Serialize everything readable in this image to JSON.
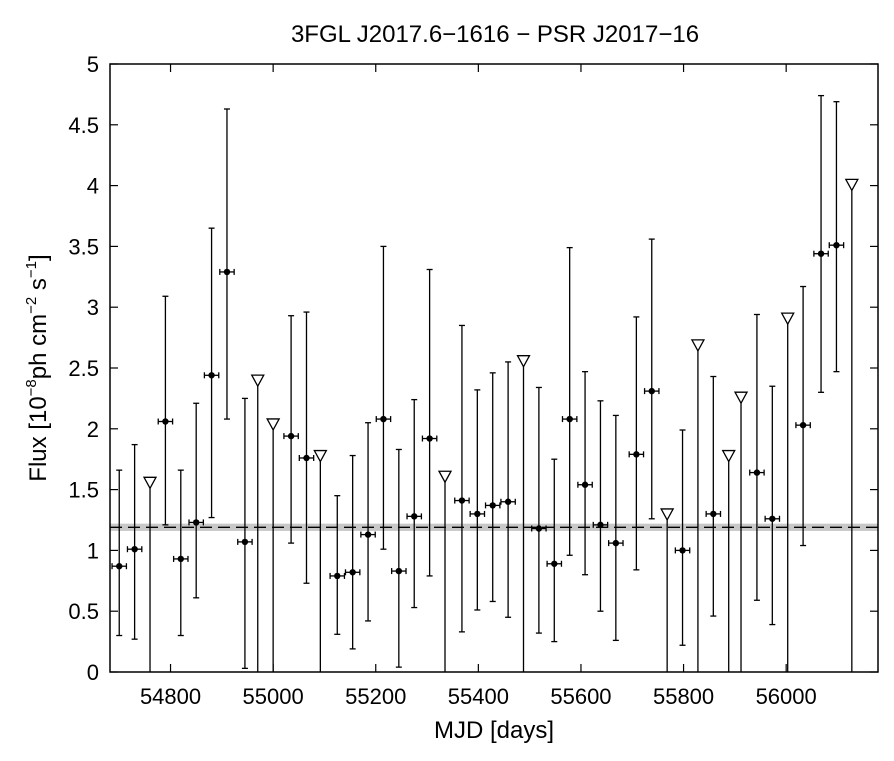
{
  "chart_data": {
    "type": "scatter",
    "title": "3FGL J2017.6−1616 − PSR J2017−16",
    "xlabel": "MJD [days]",
    "ylabel": {
      "prefix": "Flux [10",
      "exp1": "−8",
      "mid": "ph cm",
      "exp2": "−2",
      "mid2": " s",
      "exp3": "−1",
      "suffix": "]"
    },
    "xlim": [
      54682,
      56179
    ],
    "ylim": [
      0,
      5
    ],
    "xticks": [
      54800,
      55000,
      55200,
      55400,
      55600,
      55800,
      56000
    ],
    "xtick_labels": [
      "54800",
      "55000",
      "55200",
      "55400",
      "55600",
      "55800",
      "56000"
    ],
    "yticks": [
      0,
      0.5,
      1,
      1.5,
      2,
      2.5,
      3,
      3.5,
      4,
      4.5,
      5
    ],
    "ytick_labels": [
      "0",
      "0.5",
      "1",
      "1.5",
      "2",
      "2.5",
      "3",
      "3.5",
      "4",
      "4.5",
      "5"
    ],
    "mean_flux": 1.19,
    "mean_band": [
      1.16,
      1.22
    ],
    "grid": false,
    "colors": {
      "points": "#000000",
      "band": "#c8c8c8",
      "upper_limit_fill": "#ffffff"
    },
    "series": [
      {
        "kind": "detection",
        "x": [
          54700,
          54730,
          54790,
          54820,
          54850,
          54880,
          54910,
          54945,
          55035,
          55065,
          55125,
          55155,
          55185,
          55215,
          55245,
          55275,
          55305,
          55368,
          55398,
          55428,
          55458,
          55518,
          55548,
          55578,
          55608,
          55638,
          55668,
          55708,
          55738,
          55798,
          55858,
          55943,
          55973,
          56033,
          56068,
          56098
        ],
        "y": [
          0.87,
          1.01,
          2.06,
          0.93,
          1.23,
          2.44,
          3.29,
          1.07,
          1.94,
          1.76,
          0.79,
          0.82,
          1.13,
          2.08,
          0.83,
          1.28,
          1.92,
          1.41,
          1.3,
          1.37,
          1.4,
          1.18,
          0.89,
          2.08,
          1.54,
          1.21,
          1.06,
          1.79,
          2.31,
          1.0,
          1.3,
          1.64,
          1.26,
          2.03,
          3.44,
          3.51
        ],
        "y_low": [
          0.3,
          0.27,
          1.21,
          0.3,
          0.61,
          1.27,
          2.08,
          0.03,
          1.06,
          0.73,
          0.31,
          0.19,
          0.42,
          1.01,
          0.04,
          0.53,
          0.79,
          0.33,
          0.51,
          0.58,
          0.45,
          0.32,
          0.25,
          0.96,
          0.8,
          0.5,
          0.26,
          0.84,
          1.26,
          0.22,
          0.46,
          0.59,
          0.39,
          1.04,
          2.3,
          2.47
        ],
        "y_high": [
          1.66,
          1.87,
          3.09,
          1.66,
          2.21,
          3.65,
          4.63,
          2.25,
          2.93,
          2.96,
          1.45,
          1.78,
          2.05,
          3.5,
          1.83,
          2.24,
          3.31,
          2.85,
          2.32,
          2.46,
          2.55,
          2.34,
          1.75,
          3.49,
          2.47,
          2.23,
          2.11,
          2.92,
          3.56,
          1.99,
          2.43,
          2.94,
          2.35,
          3.17,
          4.74,
          4.69
        ],
        "x_halfwidth": 14
      },
      {
        "kind": "upper_limit",
        "x": [
          54760,
          54970,
          55000,
          55092,
          55335,
          55488,
          55768,
          55828,
          55888,
          55912,
          56003,
          56128
        ],
        "y": [
          1.56,
          2.4,
          2.04,
          1.78,
          1.61,
          2.56,
          1.3,
          2.69,
          1.78,
          2.26,
          2.91,
          4.01
        ]
      }
    ]
  }
}
